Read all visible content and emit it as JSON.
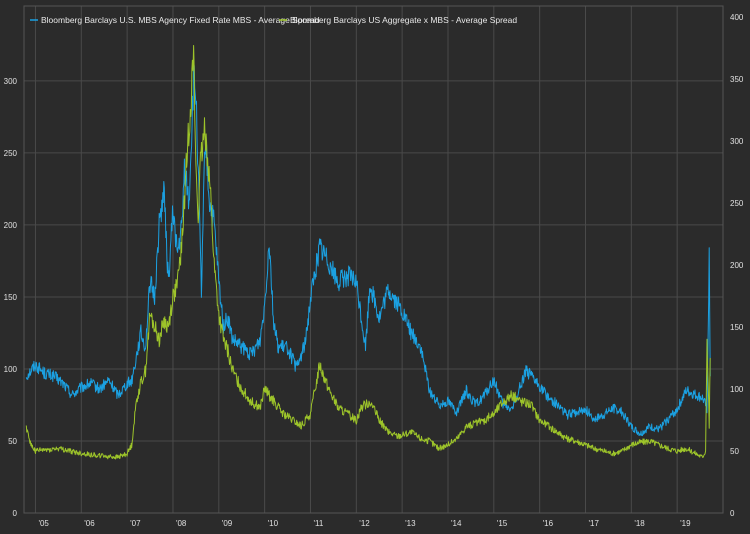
{
  "chart_data": {
    "type": "line",
    "legend_position": "top-left",
    "grid": true,
    "colors": {
      "background": "#2b2b2b",
      "grid": "#4a4a4a",
      "axis_text": "#e0e0e0"
    },
    "x_ticks": [
      "'05",
      "'06",
      "'07",
      "'08",
      "'09",
      "'10",
      "'11",
      "'12",
      "'13",
      "'14",
      "'15",
      "'16",
      "'17",
      "'18",
      "'19"
    ],
    "x_range": [
      2004.75,
      2020.0
    ],
    "left_axis": {
      "ticks": [
        "0",
        "50",
        "100",
        "150",
        "200",
        "250",
        "300"
      ],
      "range": [
        0,
        352
      ]
    },
    "right_axis": {
      "ticks": [
        "0",
        "50",
        "100",
        "150",
        "200",
        "250",
        "300",
        "350",
        "400"
      ],
      "range": [
        0,
        409
      ]
    },
    "series": [
      {
        "name": "Bloomberg Barclays U.S. MBS Agency Fixed Rate MBS - Average Spread",
        "axis": "left",
        "color": "#1ba1e2",
        "x": [
          2004.8,
          2005.0,
          2005.2,
          2005.4,
          2005.6,
          2005.8,
          2006.0,
          2006.2,
          2006.4,
          2006.6,
          2006.8,
          2007.0,
          2007.1,
          2007.3,
          2007.4,
          2007.5,
          2007.6,
          2007.7,
          2007.8,
          2007.9,
          2008.0,
          2008.1,
          2008.2,
          2008.25,
          2008.35,
          2008.45,
          2008.5,
          2008.55,
          2008.62,
          2008.7,
          2008.8,
          2008.9,
          2009.0,
          2009.1,
          2009.2,
          2009.3,
          2009.5,
          2009.7,
          2009.9,
          2010.0,
          2010.1,
          2010.2,
          2010.3,
          2010.5,
          2010.7,
          2010.9,
          2011.0,
          2011.2,
          2011.4,
          2011.6,
          2011.8,
          2012.0,
          2012.2,
          2012.3,
          2012.5,
          2012.7,
          2012.9,
          2013.0,
          2013.2,
          2013.4,
          2013.6,
          2013.8,
          2014.0,
          2014.2,
          2014.4,
          2014.6,
          2014.8,
          2015.0,
          2015.2,
          2015.4,
          2015.6,
          2015.7,
          2015.8,
          2016.0,
          2016.2,
          2016.4,
          2016.6,
          2016.8,
          2017.0,
          2017.2,
          2017.4,
          2017.6,
          2017.8,
          2018.0,
          2018.2,
          2018.4,
          2018.6,
          2018.8,
          2019.0,
          2019.2,
          2019.4,
          2019.55,
          2019.62,
          2019.65,
          2019.7,
          2019.72
        ],
        "y": [
          95,
          103,
          97,
          95,
          90,
          82,
          87,
          90,
          86,
          92,
          82,
          90,
          92,
          125,
          115,
          160,
          150,
          200,
          225,
          160,
          210,
          180,
          200,
          240,
          215,
          300,
          290,
          240,
          150,
          260,
          215,
          200,
          160,
          130,
          135,
          120,
          115,
          110,
          120,
          145,
          190,
          130,
          115,
          115,
          100,
          120,
          150,
          185,
          175,
          160,
          165,
          160,
          115,
          160,
          135,
          155,
          145,
          140,
          125,
          115,
          85,
          75,
          78,
          70,
          85,
          75,
          82,
          92,
          75,
          72,
          90,
          100,
          95,
          88,
          80,
          75,
          68,
          70,
          72,
          65,
          68,
          73,
          70,
          60,
          55,
          60,
          58,
          65,
          72,
          85,
          82,
          80,
          75,
          70,
          180,
          95
        ],
        "labels": []
      },
      {
        "name": "Bloomberg Barclays US Aggregate x MBS - Average Spread",
        "axis": "right",
        "color": "#9dc42a",
        "x": [
          2004.8,
          2004.9,
          2005.0,
          2005.5,
          2006.0,
          2006.5,
          2006.8,
          2007.0,
          2007.1,
          2007.2,
          2007.3,
          2007.4,
          2007.5,
          2007.6,
          2007.7,
          2007.8,
          2007.9,
          2008.0,
          2008.1,
          2008.2,
          2008.3,
          2008.4,
          2008.45,
          2008.5,
          2008.55,
          2008.6,
          2008.7,
          2008.8,
          2008.9,
          2009.0,
          2009.1,
          2009.2,
          2009.3,
          2009.5,
          2009.7,
          2009.9,
          2010.0,
          2010.2,
          2010.4,
          2010.6,
          2010.8,
          2011.0,
          2011.2,
          2011.4,
          2011.6,
          2011.8,
          2012.0,
          2012.1,
          2012.3,
          2012.5,
          2012.7,
          2012.9,
          2013.0,
          2013.2,
          2013.4,
          2013.6,
          2013.8,
          2014.0,
          2014.2,
          2014.4,
          2014.6,
          2014.8,
          2015.0,
          2015.2,
          2015.4,
          2015.6,
          2015.8,
          2016.0,
          2016.2,
          2016.4,
          2016.6,
          2016.8,
          2017.0,
          2017.2,
          2017.4,
          2017.6,
          2017.8,
          2018.0,
          2018.2,
          2018.4,
          2018.6,
          2018.8,
          2019.0,
          2019.2,
          2019.4,
          2019.55,
          2019.62,
          2019.65,
          2019.7,
          2019.72
        ],
        "y": [
          70,
          55,
          50,
          52,
          48,
          46,
          45,
          48,
          55,
          90,
          105,
          115,
          160,
          150,
          140,
          155,
          150,
          175,
          185,
          220,
          285,
          340,
          370,
          280,
          240,
          280,
          310,
          270,
          200,
          160,
          140,
          130,
          115,
          100,
          90,
          85,
          100,
          90,
          80,
          75,
          70,
          80,
          120,
          100,
          85,
          80,
          75,
          85,
          90,
          75,
          65,
          62,
          63,
          65,
          60,
          58,
          52,
          55,
          60,
          70,
          72,
          75,
          80,
          90,
          95,
          90,
          88,
          75,
          70,
          65,
          60,
          58,
          55,
          52,
          50,
          48,
          50,
          55,
          57,
          58,
          55,
          52,
          50,
          52,
          48,
          45,
          50,
          140,
          70,
          125
        ],
        "labels": []
      }
    ]
  }
}
